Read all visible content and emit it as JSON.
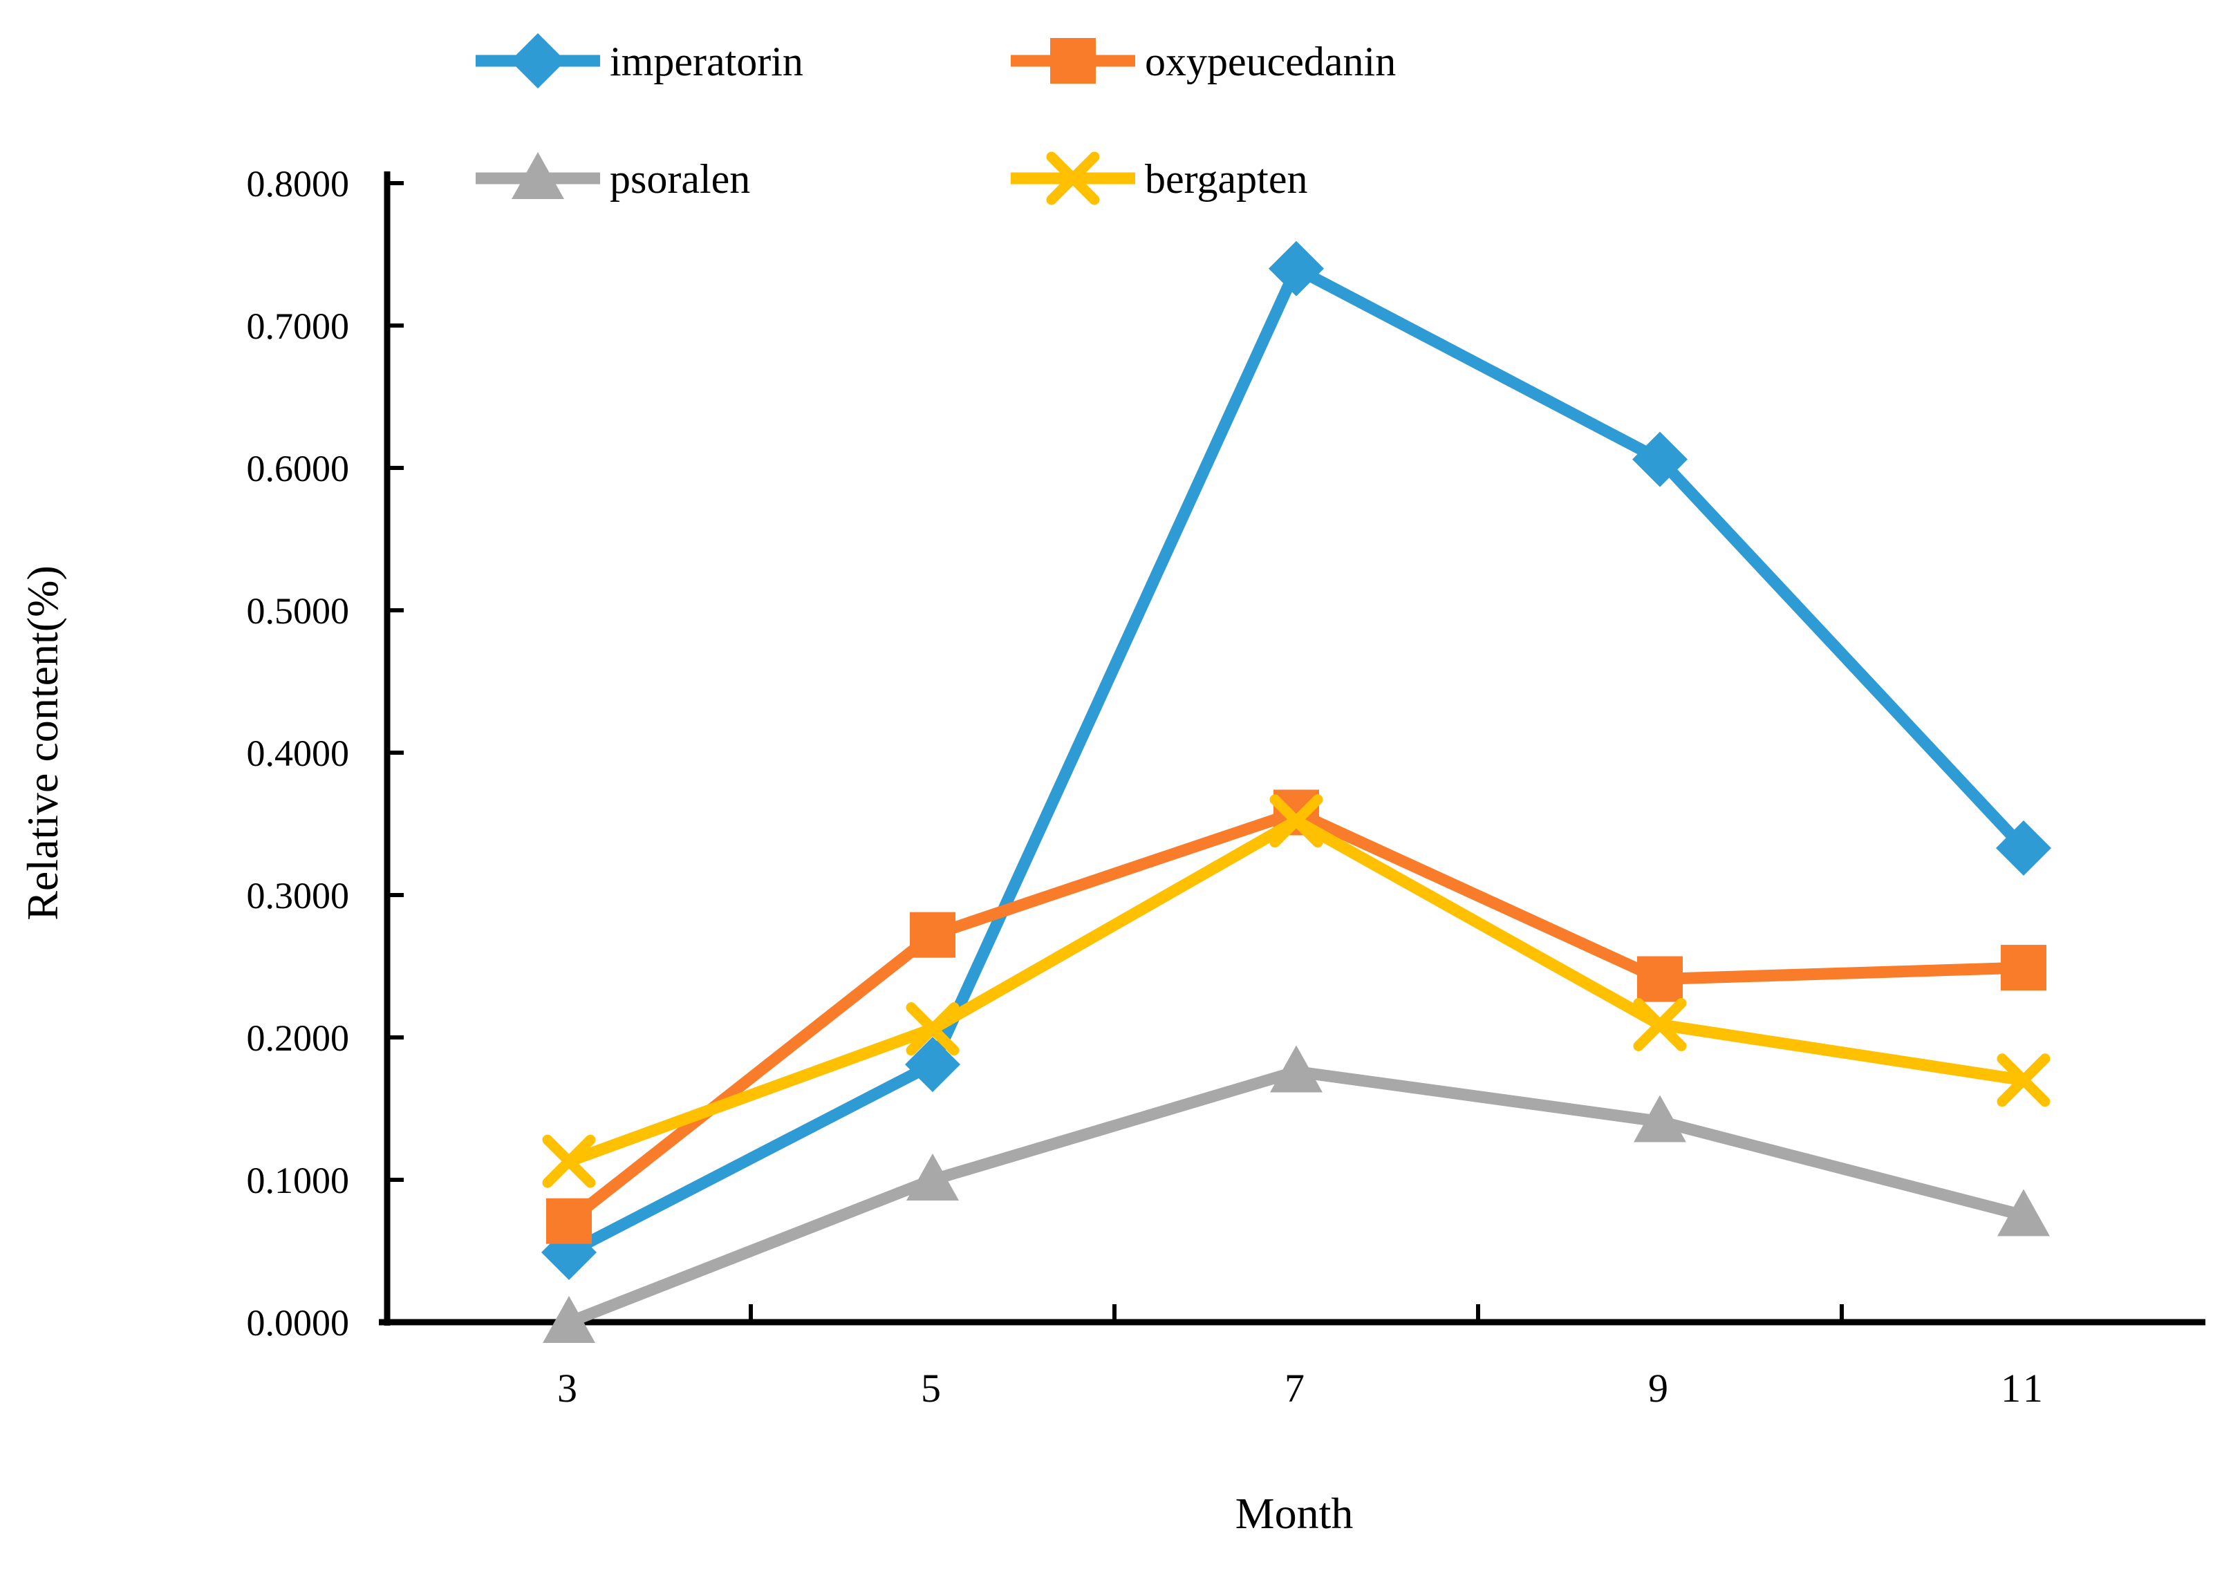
{
  "chart_data": {
    "type": "line",
    "title": "",
    "xlabel": "Month",
    "ylabel": "Relative content(%)",
    "x_categories": [
      "3",
      "5",
      "7",
      "9",
      "11"
    ],
    "y_ticks": [
      "0.0000",
      "0.1000",
      "0.2000",
      "0.3000",
      "0.4000",
      "0.5000",
      "0.6000",
      "0.7000",
      "0.8000"
    ],
    "ylim": [
      0,
      0.8
    ],
    "grid": false,
    "legend_position": "top-left-two-columns",
    "axis_color": "#000000",
    "series": [
      {
        "name": "imperatorin",
        "color": "#2E9BD5",
        "marker": "diamond",
        "values": [
          0.049,
          0.181,
          0.74,
          0.606,
          0.333
        ]
      },
      {
        "name": "oxypeucedanin",
        "color": "#F87C2A",
        "marker": "square",
        "values": [
          0.071,
          0.272,
          0.358,
          0.241,
          0.249
        ]
      },
      {
        "name": "psoralen",
        "color": "#A8A8A8",
        "marker": "triangle",
        "values": [
          0.0,
          0.1,
          0.176,
          0.141,
          0.075
        ]
      },
      {
        "name": "bergapten",
        "color": "#FFC000",
        "marker": "x",
        "values": [
          0.113,
          0.206,
          0.352,
          0.209,
          0.17
        ]
      }
    ]
  }
}
